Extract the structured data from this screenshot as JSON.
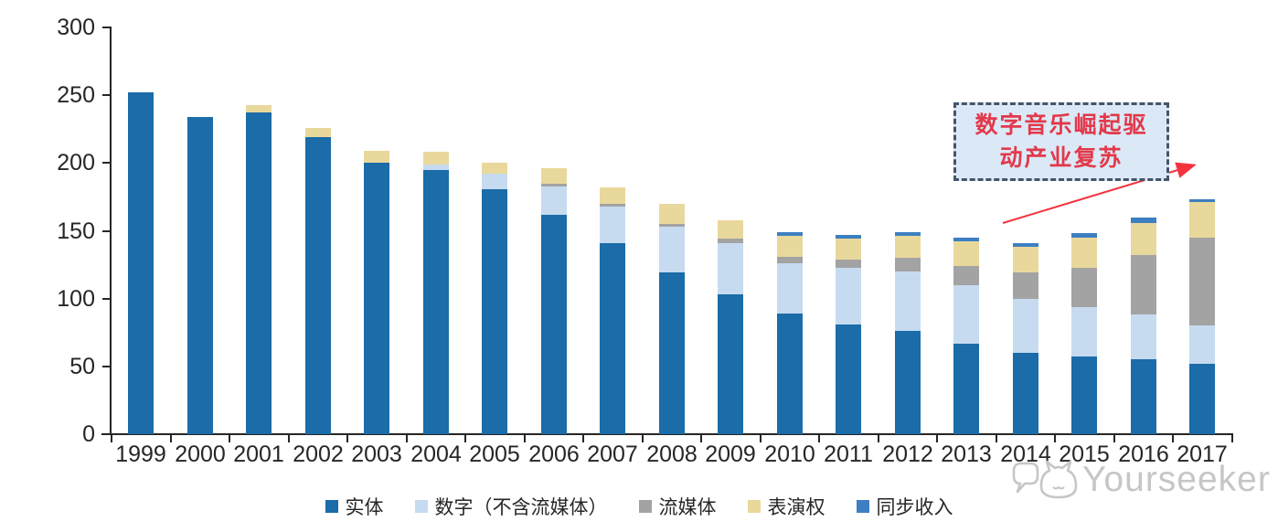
{
  "chart_data": {
    "type": "bar",
    "stacked": true,
    "title": "",
    "xlabel": "",
    "ylabel": "",
    "ylim": [
      0,
      300
    ],
    "yticks": [
      0,
      50,
      100,
      150,
      200,
      250,
      300
    ],
    "grid": false,
    "legend_position": "bottom",
    "categories": [
      "1999",
      "2000",
      "2001",
      "2002",
      "2003",
      "2004",
      "2005",
      "2006",
      "2007",
      "2008",
      "2009",
      "2010",
      "2011",
      "2012",
      "2013",
      "2014",
      "2015",
      "2016",
      "2017"
    ],
    "series": [
      {
        "name": "实体",
        "color": "#1b6ca8",
        "values": [
          252,
          234,
          237,
          219,
          200,
          195,
          181,
          162,
          141,
          119,
          103,
          89,
          81,
          76,
          67,
          60,
          57,
          55,
          52
        ]
      },
      {
        "name": "数字（不含流媒体）",
        "color": "#c6dbf0",
        "values": [
          0,
          0,
          0,
          0,
          0,
          4,
          11,
          21,
          27,
          34,
          38,
          37,
          42,
          44,
          43,
          40,
          37,
          33,
          28
        ]
      },
      {
        "name": "流媒体",
        "color": "#a3a3a3",
        "values": [
          0,
          0,
          0,
          0,
          0,
          0,
          0,
          2,
          2,
          2,
          3,
          5,
          6,
          10,
          14,
          19,
          29,
          44,
          65
        ]
      },
      {
        "name": "表演权",
        "color": "#e9d89c",
        "values": [
          0,
          0,
          6,
          7,
          9,
          9,
          8,
          11,
          12,
          15,
          14,
          15,
          15,
          16,
          18,
          19,
          22,
          24,
          26
        ]
      },
      {
        "name": "同步收入",
        "color": "#3d7fc1",
        "values": [
          0,
          0,
          0,
          0,
          0,
          0,
          0,
          0,
          0,
          0,
          0,
          3,
          3,
          3,
          3,
          3,
          3,
          4,
          2
        ]
      }
    ]
  },
  "annotation": {
    "line1": "数字音乐崛起驱",
    "line2": "动产业复苏",
    "text_color": "#e2394b",
    "box_fill": "#dbe9f7",
    "border_color": "#44546a",
    "arrow_color": "#f5333f"
  },
  "watermark": {
    "brand": "Yourseeker"
  }
}
